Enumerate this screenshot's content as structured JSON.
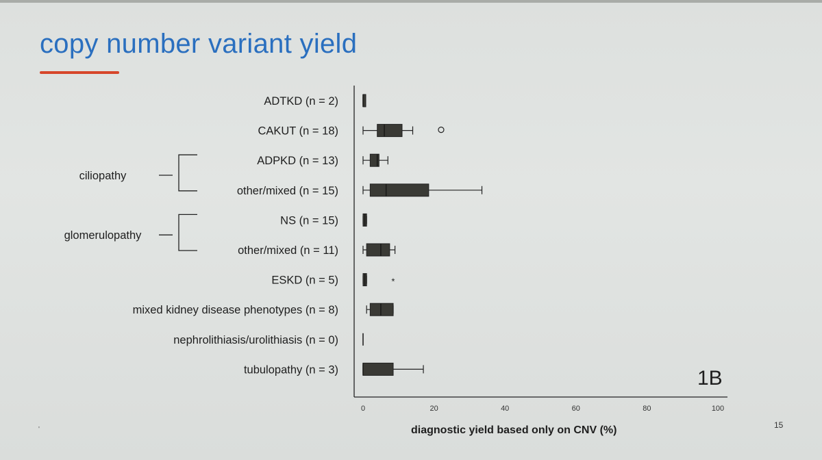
{
  "slide": {
    "title": "copy number variant yield",
    "panel_label": "1B",
    "page_number": "15",
    "corner_mark": "'",
    "colors": {
      "title": "#2a6fbf",
      "underline": "#d6462a",
      "box": "#3a3a35"
    }
  },
  "chart_data": {
    "type": "boxplot",
    "xlabel": "diagnostic yield based only on CNV (%)",
    "xlim": [
      0,
      100
    ],
    "xticks": [
      0,
      20,
      40,
      60,
      80,
      100
    ],
    "groups": [
      {
        "label": "ciliopathy",
        "members": [
          2,
          3
        ]
      },
      {
        "label": "glomerulopathy",
        "members": [
          4,
          5
        ]
      }
    ],
    "categories": [
      {
        "label": "ADTKD (n = 2)",
        "min": 0,
        "q1": 0,
        "median": 0,
        "q3": 0.5,
        "max": 0.5,
        "outliers": []
      },
      {
        "label": "CAKUT (n = 18)",
        "min": 0,
        "q1": 4,
        "median": 6,
        "q3": 11,
        "max": 14,
        "outliers": [
          {
            "value": 22,
            "marker": "circle"
          }
        ]
      },
      {
        "label": "ADPKD (n = 13)",
        "min": 0,
        "q1": 2,
        "median": 4,
        "q3": 4.5,
        "max": 7,
        "outliers": []
      },
      {
        "label": "other/mixed (n = 15)",
        "min": 0,
        "q1": 2,
        "median": 6.5,
        "q3": 18.5,
        "max": 33.5,
        "outliers": []
      },
      {
        "label": "NS (n = 15)",
        "min": 0,
        "q1": 0,
        "median": 0.5,
        "q3": 1,
        "max": 1,
        "outliers": []
      },
      {
        "label": "other/mixed (n = 11)",
        "min": 0,
        "q1": 1,
        "median": 5,
        "q3": 7.5,
        "max": 9,
        "outliers": []
      },
      {
        "label": "ESKD (n = 5)",
        "min": 0,
        "q1": 0,
        "median": 0.5,
        "q3": 1,
        "max": 1,
        "outliers": [
          {
            "value": 5,
            "marker": "star"
          }
        ]
      },
      {
        "label": "mixed kidney disease phenotypes (n = 8)",
        "min": 1,
        "q1": 2,
        "median": 5,
        "q3": 8.5,
        "max": 8.5,
        "outliers": []
      },
      {
        "label": "nephrolithiasis/urolithiasis (n = 0)",
        "min": 0,
        "q1": 0,
        "median": 0,
        "q3": 0,
        "max": 0,
        "outliers": []
      },
      {
        "label": "tubulopathy (n = 3)",
        "min": 0,
        "q1": 0,
        "median": 0,
        "q3": 8.5,
        "max": 17,
        "outliers": []
      }
    ]
  }
}
